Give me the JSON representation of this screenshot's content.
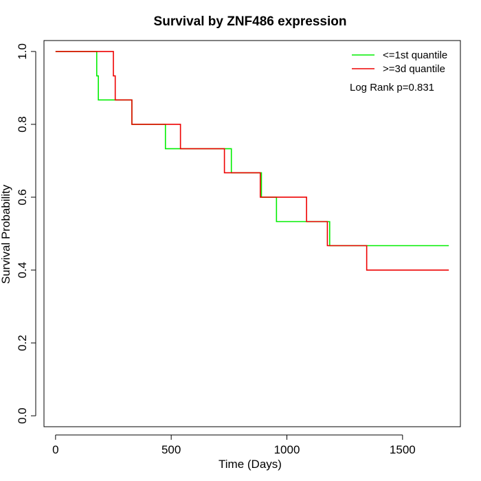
{
  "chart_data": {
    "type": "line",
    "title": "Survival by ZNF486 expression",
    "xlabel": "Time (Days)",
    "ylabel": "Survival Probability",
    "xlim": [
      -50,
      1750
    ],
    "ylim": [
      -0.03,
      1.03
    ],
    "x_ticks": [
      0,
      500,
      1000,
      1500
    ],
    "y_ticks": [
      0.0,
      0.2,
      0.4,
      0.6,
      0.8,
      1.0
    ],
    "x_tick_labels": [
      "0",
      "500",
      "1000",
      "1500"
    ],
    "y_tick_labels": [
      "0.0",
      "0.2",
      "0.4",
      "0.6",
      "0.8",
      "1.0"
    ],
    "grid": false,
    "legend_position": "top-right",
    "annotation": "Log Rank p=0.831",
    "series": [
      {
        "name": "<=1st quantile",
        "color": "#00ee00",
        "step": true,
        "points": [
          [
            0,
            1.0
          ],
          [
            178,
            1.0
          ],
          [
            178,
            0.933
          ],
          [
            185,
            0.933
          ],
          [
            185,
            0.867
          ],
          [
            330,
            0.867
          ],
          [
            330,
            0.8
          ],
          [
            475,
            0.8
          ],
          [
            475,
            0.733
          ],
          [
            760,
            0.733
          ],
          [
            760,
            0.667
          ],
          [
            890,
            0.667
          ],
          [
            890,
            0.6
          ],
          [
            955,
            0.6
          ],
          [
            955,
            0.533
          ],
          [
            1185,
            0.533
          ],
          [
            1185,
            0.467
          ],
          [
            1700,
            0.467
          ]
        ]
      },
      {
        "name": ">=3d quantile",
        "color": "#ee0000",
        "step": true,
        "points": [
          [
            0,
            1.0
          ],
          [
            250,
            1.0
          ],
          [
            250,
            0.933
          ],
          [
            258,
            0.933
          ],
          [
            258,
            0.867
          ],
          [
            330,
            0.867
          ],
          [
            330,
            0.8
          ],
          [
            540,
            0.8
          ],
          [
            540,
            0.733
          ],
          [
            730,
            0.733
          ],
          [
            730,
            0.667
          ],
          [
            885,
            0.667
          ],
          [
            885,
            0.6
          ],
          [
            1085,
            0.6
          ],
          [
            1085,
            0.533
          ],
          [
            1175,
            0.533
          ],
          [
            1175,
            0.467
          ],
          [
            1345,
            0.467
          ],
          [
            1345,
            0.4
          ],
          [
            1700,
            0.4
          ]
        ]
      }
    ]
  }
}
